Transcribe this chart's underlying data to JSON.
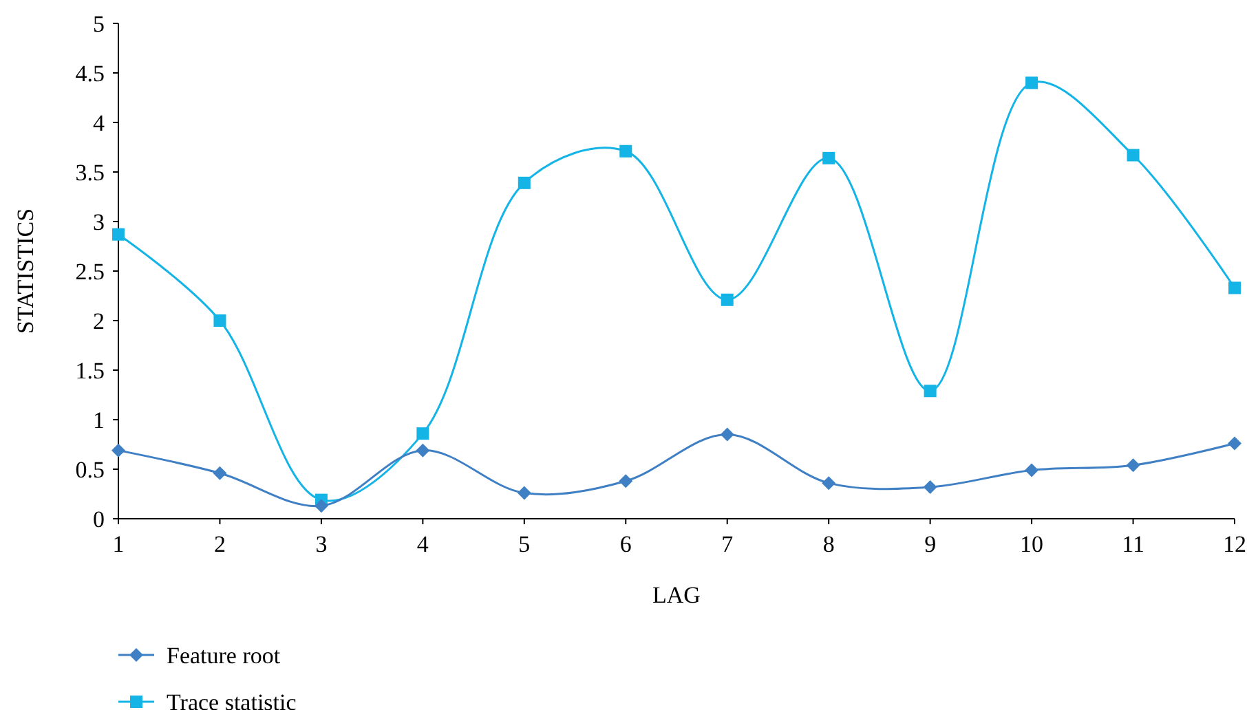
{
  "chart_data": {
    "type": "line",
    "xlabel": "LAG",
    "ylabel": "STATISTICS",
    "x": [
      1,
      2,
      3,
      4,
      5,
      6,
      7,
      8,
      9,
      10,
      11,
      12
    ],
    "xlim": [
      1,
      12
    ],
    "xticks": [
      1,
      2,
      3,
      4,
      5,
      6,
      7,
      8,
      9,
      10,
      11,
      12
    ],
    "ylim": [
      0,
      5
    ],
    "yticks": [
      0,
      0.5,
      1,
      1.5,
      2,
      2.5,
      3,
      3.5,
      4,
      4.5,
      5
    ],
    "grid": false,
    "legend": "bottom left",
    "series": [
      {
        "name": "Feature root",
        "color": "#3f7fc4",
        "marker": "diamond",
        "values": [
          0.69,
          0.46,
          0.13,
          0.69,
          0.26,
          0.38,
          0.85,
          0.36,
          0.32,
          0.49,
          0.54,
          0.76
        ]
      },
      {
        "name": "Trace statistic",
        "color": "#14b4e6",
        "marker": "square",
        "values": [
          2.87,
          2.0,
          0.19,
          0.86,
          3.39,
          3.71,
          2.21,
          3.64,
          1.29,
          4.4,
          3.67,
          2.33
        ]
      }
    ]
  }
}
